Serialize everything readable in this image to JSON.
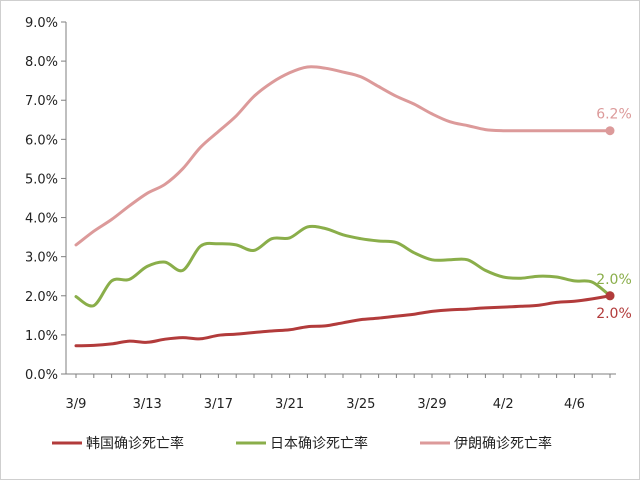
{
  "chart_data": {
    "type": "line",
    "x": [
      "3/9",
      "3/10",
      "3/11",
      "3/12",
      "3/13",
      "3/14",
      "3/15",
      "3/16",
      "3/17",
      "3/18",
      "3/19",
      "3/20",
      "3/21",
      "3/22",
      "3/23",
      "3/24",
      "3/25",
      "3/26",
      "3/27",
      "3/28",
      "3/29",
      "3/30",
      "3/31",
      "4/1",
      "4/2",
      "4/3",
      "4/4",
      "4/5",
      "4/6",
      "4/7",
      "4/8"
    ],
    "xticks": [
      "3/9",
      "3/13",
      "3/17",
      "3/21",
      "3/25",
      "3/29",
      "4/2",
      "4/6"
    ],
    "yticks": [
      "0.0%",
      "1.0%",
      "2.0%",
      "3.0%",
      "4.0%",
      "5.0%",
      "6.0%",
      "7.0%",
      "8.0%",
      "9.0%"
    ],
    "ylim": [
      0,
      9
    ],
    "series": [
      {
        "name": "韩国确诊死亡率",
        "color": "#b23b3b",
        "values": [
          0.72,
          0.73,
          0.77,
          0.84,
          0.81,
          0.89,
          0.93,
          0.9,
          0.99,
          1.02,
          1.06,
          1.1,
          1.13,
          1.21,
          1.23,
          1.31,
          1.39,
          1.43,
          1.48,
          1.53,
          1.6,
          1.64,
          1.66,
          1.69,
          1.71,
          1.73,
          1.76,
          1.83,
          1.86,
          1.92,
          2.0
        ],
        "end_label": "2.0%"
      },
      {
        "name": "日本确诊死亡率",
        "color": "#8aae4a",
        "values": [
          1.98,
          1.75,
          2.38,
          2.42,
          2.75,
          2.86,
          2.65,
          3.27,
          3.33,
          3.3,
          3.16,
          3.46,
          3.48,
          3.76,
          3.72,
          3.56,
          3.46,
          3.4,
          3.36,
          3.1,
          2.92,
          2.92,
          2.92,
          2.65,
          2.48,
          2.45,
          2.5,
          2.48,
          2.38,
          2.35,
          2.0
        ],
        "end_label": "2.0%"
      },
      {
        "name": "伊朗确诊死亡率",
        "color": "#dc9a9a",
        "values": [
          3.3,
          3.65,
          3.95,
          4.3,
          4.62,
          4.85,
          5.25,
          5.8,
          6.2,
          6.6,
          7.1,
          7.45,
          7.7,
          7.85,
          7.82,
          7.72,
          7.6,
          7.35,
          7.1,
          6.9,
          6.65,
          6.45,
          6.35,
          6.25,
          6.22,
          6.22,
          6.22,
          6.22,
          6.22,
          6.22,
          6.22
        ],
        "end_label": "6.2%"
      }
    ]
  }
}
